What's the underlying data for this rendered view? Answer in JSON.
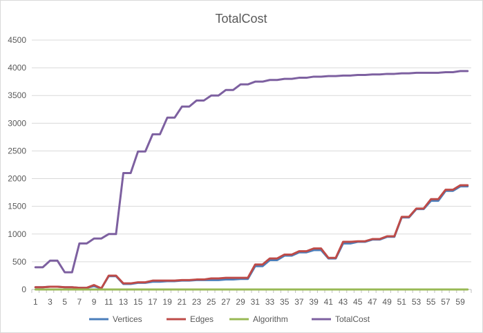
{
  "chart_data": {
    "type": "line",
    "title": "TotalCost",
    "xlabel": "",
    "ylabel": "",
    "ylim": [
      0,
      4500
    ],
    "yticks": [
      0,
      500,
      1000,
      1500,
      2000,
      2500,
      3000,
      3500,
      4000,
      4500
    ],
    "x": [
      1,
      2,
      3,
      4,
      5,
      6,
      7,
      8,
      9,
      10,
      11,
      12,
      13,
      14,
      15,
      16,
      17,
      18,
      19,
      20,
      21,
      22,
      23,
      24,
      25,
      26,
      27,
      28,
      29,
      30,
      31,
      32,
      33,
      34,
      35,
      36,
      37,
      38,
      39,
      40,
      41,
      42,
      43,
      44,
      45,
      46,
      47,
      48,
      49,
      50,
      51,
      52,
      53,
      54,
      55,
      56,
      57,
      58,
      59,
      60
    ],
    "xtick_labels": [
      1,
      3,
      5,
      7,
      9,
      11,
      13,
      15,
      17,
      19,
      21,
      23,
      25,
      27,
      29,
      31,
      33,
      35,
      37,
      39,
      41,
      43,
      45,
      47,
      49,
      51,
      53,
      55,
      57,
      59
    ],
    "grid": "horizontal",
    "legend_position": "bottom",
    "series": [
      {
        "name": "Vertices",
        "color": "#4a7ebb",
        "values": [
          40,
          40,
          50,
          50,
          40,
          40,
          30,
          30,
          60,
          20,
          240,
          240,
          100,
          100,
          120,
          120,
          140,
          140,
          150,
          150,
          160,
          160,
          170,
          170,
          170,
          170,
          180,
          180,
          190,
          190,
          420,
          420,
          530,
          530,
          610,
          610,
          670,
          670,
          710,
          710,
          560,
          560,
          830,
          830,
          860,
          860,
          900,
          900,
          950,
          950,
          1300,
          1300,
          1450,
          1450,
          1600,
          1600,
          1780,
          1780,
          1860,
          1860
        ]
      },
      {
        "name": "Edges",
        "color": "#be4b48",
        "values": [
          40,
          40,
          50,
          50,
          40,
          40,
          30,
          30,
          80,
          20,
          250,
          250,
          110,
          110,
          130,
          130,
          160,
          160,
          160,
          160,
          170,
          170,
          180,
          180,
          200,
          200,
          210,
          210,
          210,
          210,
          450,
          450,
          560,
          560,
          630,
          630,
          690,
          690,
          740,
          740,
          570,
          570,
          860,
          860,
          870,
          870,
          910,
          910,
          960,
          960,
          1310,
          1310,
          1460,
          1460,
          1630,
          1630,
          1800,
          1800,
          1880,
          1880
        ]
      },
      {
        "name": "Algorithm",
        "color": "#98b954",
        "values": [
          0,
          0,
          0,
          0,
          0,
          0,
          0,
          0,
          0,
          0,
          0,
          0,
          0,
          0,
          0,
          0,
          0,
          0,
          0,
          0,
          0,
          0,
          0,
          0,
          0,
          0,
          0,
          0,
          0,
          0,
          0,
          0,
          0,
          0,
          0,
          0,
          0,
          0,
          0,
          0,
          0,
          0,
          0,
          0,
          0,
          0,
          0,
          0,
          0,
          0,
          0,
          0,
          0,
          0,
          0,
          0,
          0,
          0,
          0,
          0
        ]
      },
      {
        "name": "TotalCost",
        "color": "#7d60a0",
        "values": [
          400,
          400,
          520,
          520,
          310,
          310,
          830,
          830,
          920,
          920,
          1000,
          1000,
          2100,
          2100,
          2490,
          2490,
          2800,
          2800,
          3100,
          3100,
          3300,
          3300,
          3410,
          3410,
          3500,
          3500,
          3600,
          3600,
          3700,
          3700,
          3750,
          3750,
          3780,
          3780,
          3800,
          3800,
          3820,
          3820,
          3840,
          3840,
          3850,
          3850,
          3860,
          3860,
          3870,
          3870,
          3880,
          3880,
          3890,
          3890,
          3900,
          3900,
          3910,
          3910,
          3910,
          3910,
          3920,
          3920,
          3940,
          3940
        ]
      }
    ]
  }
}
